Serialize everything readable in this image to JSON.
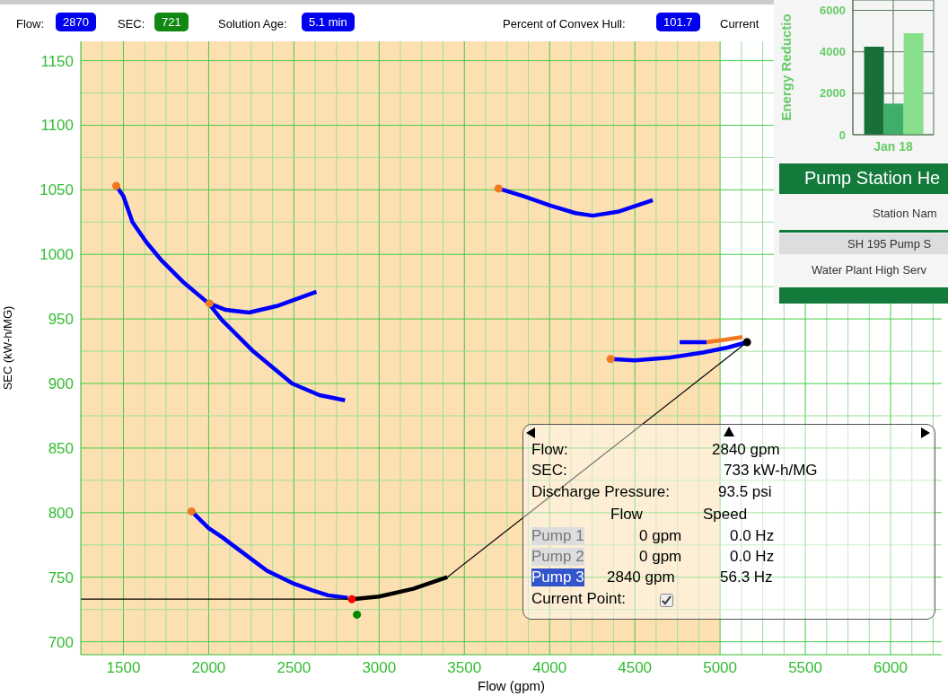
{
  "chart_data": [
    {
      "type": "line",
      "xlabel": "Flow (gpm)",
      "ylabel": "SEC (kW-h/MG)",
      "xlim": [
        1250,
        6300
      ],
      "ylim": [
        690,
        1165
      ],
      "grid": true,
      "xticks": [
        {
          "value": 1250,
          "label": null
        },
        {
          "value": 1375,
          "label": null
        },
        1500,
        {
          "value": 1625,
          "label": null
        },
        {
          "value": 1750,
          "label": null
        },
        {
          "value": 1875,
          "label": null
        },
        2000,
        {
          "value": 2125,
          "label": null
        },
        {
          "value": 2250,
          "label": null
        },
        {
          "value": 2375,
          "label": null
        },
        2500,
        {
          "value": 2625,
          "label": null
        },
        {
          "value": 2750,
          "label": null
        },
        {
          "value": 2875,
          "label": null
        },
        3000,
        {
          "value": 3125,
          "label": null
        },
        {
          "value": 3250,
          "label": null
        },
        {
          "value": 3375,
          "label": null
        },
        3500,
        {
          "value": 3625,
          "label": null
        },
        {
          "value": 3750,
          "label": null
        },
        {
          "value": 3875,
          "label": null
        },
        4000,
        {
          "value": 4125,
          "label": null
        },
        {
          "value": 4250,
          "label": null
        },
        {
          "value": 4375,
          "label": null
        },
        4500,
        {
          "value": 4625,
          "label": null
        },
        {
          "value": 4750,
          "label": null
        },
        {
          "value": 4875,
          "label": null
        },
        5000,
        {
          "value": 5125,
          "label": null
        },
        {
          "value": 5250,
          "label": null
        },
        {
          "value": 5375,
          "label": null
        },
        5500,
        {
          "value": 5625,
          "label": null
        },
        {
          "value": 5750,
          "label": null
        },
        {
          "value": 5875,
          "label": null
        },
        6000,
        {
          "value": 6125,
          "label": null
        },
        {
          "value": 6250,
          "label": null
        }
      ],
      "yticks": [
        700,
        {
          "value": 725,
          "label": null
        },
        750,
        {
          "value": 775,
          "label": null
        },
        800,
        {
          "value": 825,
          "label": null
        },
        850,
        {
          "value": 875,
          "label": null
        },
        900,
        {
          "value": 925,
          "label": null
        },
        950,
        {
          "value": 975,
          "label": null
        },
        1000,
        {
          "value": 1025,
          "label": null
        },
        1050,
        {
          "value": 1075,
          "label": null
        },
        1100,
        {
          "value": 1125,
          "label": null
        },
        1150
      ],
      "bands": [
        {
          "axis": "x",
          "from": 1250,
          "to": 5000,
          "color": "#fde0b2"
        }
      ],
      "series": [
        {
          "type": "line",
          "color": "#0000ff",
          "x": [
            1458,
            1500,
            1553,
            1637,
            1726,
            1847,
            2000,
            2079,
            2253,
            2489,
            2650,
            2800
          ],
          "values": [
            1053,
            1045,
            1025,
            1009,
            995,
            979,
            962,
            949,
            926,
            900,
            891,
            887
          ]
        },
        {
          "type": "line",
          "color": "#0000ff",
          "x": [
            2005,
            2100,
            2237,
            2400,
            2632
          ],
          "values": [
            962,
            957,
            955,
            960,
            971
          ]
        },
        {
          "type": "line",
          "color": "#0000ff",
          "x": [
            3700,
            3850,
            4000,
            4150,
            4253,
            4400,
            4605
          ],
          "values": [
            1051,
            1045,
            1038,
            1032,
            1030,
            1033,
            1042
          ]
        },
        {
          "type": "line",
          "color": "#0000ff",
          "x": [
            4358,
            4500,
            4700,
            4900,
            5050,
            5158
          ],
          "values": [
            919,
            918,
            920,
            924,
            928,
            932
          ]
        },
        {
          "type": "line",
          "color": "#0000ff",
          "x": [
            4763,
            4850,
            4921
          ],
          "values": [
            932,
            932,
            932
          ]
        },
        {
          "type": "line",
          "color": "#f07820",
          "x": [
            4921,
            5030,
            5132
          ],
          "values": [
            932,
            934,
            936
          ]
        },
        {
          "type": "line",
          "color": "#0000ff",
          "x": [
            1900,
            2000,
            2079,
            2200,
            2342,
            2500,
            2605,
            2700,
            2816
          ],
          "values": [
            801,
            788,
            781,
            769,
            755,
            745,
            740,
            736,
            734
          ]
        },
        {
          "type": "line",
          "color": "#000000",
          "x": [
            2840,
            3000,
            3200,
            3400
          ],
          "values": [
            733,
            735,
            741,
            750
          ]
        },
        {
          "type": "line",
          "color": "#000000",
          "x": [
            3400,
            5158
          ],
          "values": [
            750,
            932
          ]
        },
        {
          "type": "line",
          "color": "#000000",
          "x": [
            1250,
            2840
          ],
          "values": [
            733,
            733
          ]
        },
        {
          "type": "scatter",
          "color": "#f07820",
          "x": [
            1458,
            2005,
            3700,
            4358,
            1900
          ],
          "values": [
            1053,
            962,
            1051,
            919,
            801
          ]
        },
        {
          "type": "scatter",
          "color": "#000000",
          "x": [
            5158
          ],
          "values": [
            932
          ]
        },
        {
          "type": "scatter",
          "color": "#ff0000",
          "x": [
            2840
          ],
          "values": [
            733
          ]
        },
        {
          "type": "scatter",
          "color": "#008800",
          "x": [
            2870
          ],
          "values": [
            721
          ]
        }
      ],
      "annotations": [
        "Flow:",
        "2870",
        "SEC:",
        "721",
        "Solution Age:",
        "5.1 min",
        "Percent of Convex Hull:",
        "101.7",
        "Current",
        "Flow:",
        "2840 gpm",
        "SEC:",
        "733 kW-h/MG",
        "Discharge Pressure:",
        "93.5 psi",
        "Flow",
        "Speed",
        "Pump 1",
        "0 gpm",
        "0.0 Hz",
        "Pump 2",
        "0 gpm",
        "0.0 Hz",
        "Pump 3",
        "2840 gpm",
        "56.3 Hz",
        "Current Point:"
      ]
    },
    {
      "type": "bar",
      "ylabel": "Energy Reductio",
      "categories": [
        "Jan 18"
      ],
      "ylim": [
        0,
        6500
      ],
      "yticks": [
        0,
        2000,
        4000,
        6000
      ],
      "grid": true,
      "series": [
        {
          "color": "#17703a",
          "values": [
            4250
          ]
        },
        {
          "color": "#3fae6a",
          "values": [
            1500
          ]
        },
        {
          "color": "#88e08c",
          "values": [
            4900
          ]
        }
      ]
    },
    {
      "type": "other",
      "title": "Pump Station He",
      "annotations": [
        "Station Nam",
        "SH 195 Pump S",
        "Water Plant High Serv"
      ]
    }
  ]
}
